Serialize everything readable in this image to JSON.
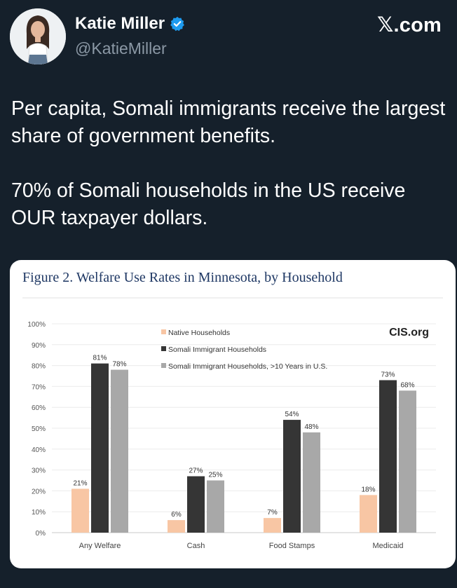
{
  "author": {
    "name": "Katie Miller",
    "handle": "@KatieMiller",
    "verified": true,
    "avatar_icon": "profile-photo"
  },
  "brand": {
    "label": "𝕏.com"
  },
  "tweet": {
    "paragraphs": [
      "Per capita, Somali immigrants receive the largest share of government benefits.",
      "70% of Somali households in the US receive OUR taxpayer dollars."
    ]
  },
  "colors": {
    "background": "#15202b",
    "verified": "#1d9bf0",
    "native": "#f8c6a4",
    "somali": "#353535",
    "somali_10yr": "#a8a8a8"
  },
  "chart_data": {
    "type": "bar",
    "title": "Figure 2. Welfare Use Rates in Minnesota, by Household",
    "source_label": "CIS.org",
    "categories": [
      "Any Welfare",
      "Cash",
      "Food Stamps",
      "Medicaid"
    ],
    "series": [
      {
        "name": "Native Households",
        "values": [
          21,
          6,
          7,
          18
        ],
        "labels": [
          "21%",
          "6%",
          "7%",
          "18%"
        ],
        "color": "#f8c6a4"
      },
      {
        "name": "Somali Immigrant Households",
        "values": [
          81,
          27,
          54,
          73
        ],
        "labels": [
          "81%",
          "27%",
          "54%",
          "73%"
        ],
        "color": "#353535"
      },
      {
        "name": "Somali Immigrant Households, >10 Years in U.S.",
        "values": [
          78,
          25,
          48,
          68
        ],
        "labels": [
          "78%",
          "25%",
          "48%",
          "68%"
        ],
        "color": "#a8a8a8"
      }
    ],
    "yticks": [
      "0%",
      "10%",
      "20%",
      "30%",
      "40%",
      "50%",
      "60%",
      "70%",
      "80%",
      "90%",
      "100%"
    ],
    "ylim": [
      0,
      100
    ],
    "xlabel": "",
    "ylabel": "",
    "grid": true,
    "legend_position": "top-center"
  }
}
